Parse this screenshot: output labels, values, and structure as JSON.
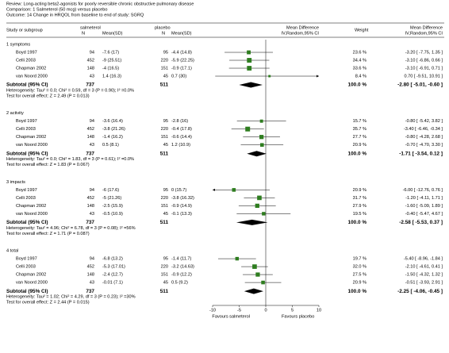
{
  "chart_data": {
    "type": "forest",
    "header": [
      "Review:  Long-acting beta2-agonists for poorly reversible chronic obstructive pulmonary disease",
      "Comparison:  1 Salmeterol (50 mcg) versus placebo",
      "Outcome:  14 Change in HRQOL from baseline to end of study: SGRQ"
    ],
    "columns": {
      "study": "Study or subgroup",
      "group1": "salmeterol",
      "n1": "N",
      "mean1": "Mean(SD)",
      "group2": "placebo",
      "n2": "N",
      "mean2": "Mean(SD)",
      "md": "Mean Difference",
      "md_method": "IV,Random,95% CI",
      "weight": "Weight",
      "md2": "Mean Difference",
      "md_method2": "IV,Random,95% CI"
    },
    "xlim": [
      -10,
      10
    ],
    "xticks": [
      -10,
      -5,
      0,
      5,
      10
    ],
    "favours": [
      "Favours salmeterol",
      "Favours placebo"
    ],
    "color": "#2e7d1f",
    "groups": [
      {
        "title": "1 symptoms",
        "studies": [
          {
            "name": "Boyd 1997",
            "n1": 94,
            "m1": "-7.6 (17)",
            "n2": 95,
            "m2": "-4.4 (14.8)",
            "weight": 23.6,
            "weight_label": "23.6 %",
            "md": -3.2,
            "lo": -7.75,
            "hi": 1.35,
            "md_label": "-3.20 [ -7.75, 1.35 ]"
          },
          {
            "name": "Celli 2003",
            "n1": 452,
            "m1": "-9 (25.51)",
            "n2": 220,
            "m2": "-5.9 (22.25)",
            "weight": 34.4,
            "weight_label": "34.4 %",
            "md": -3.1,
            "lo": -6.86,
            "hi": 0.66,
            "md_label": "-3.10 [ -6.86, 0.66 ]"
          },
          {
            "name": "Chapman 2002",
            "n1": 148,
            "m1": "-4 (16.5)",
            "n2": 151,
            "m2": "-0.9 (17.1)",
            "weight": 33.6,
            "weight_label": "33.6 %",
            "md": -3.1,
            "lo": -6.91,
            "hi": 0.71,
            "md_label": "-3.10 [ -6.91, 0.71 ]"
          },
          {
            "name": "van Noord 2000",
            "n1": 43,
            "m1": "1.4 (16.3)",
            "n2": 45,
            "m2": "0.7 (30)",
            "weight": 8.4,
            "weight_label": "8.4 %",
            "md": 0.7,
            "lo": -9.51,
            "hi": 10.91,
            "md_label": "0.70 [ -9.51, 10.91 ]"
          }
        ],
        "subtotal": {
          "label": "Subtotal (95% CI)",
          "n1": 737,
          "n2": 511,
          "weight": 100.0,
          "weight_label": "100.0 %",
          "md": -2.8,
          "lo": -5.01,
          "hi": -0.6,
          "md_label": "-2.80 [ -5.01, -0.60 ]"
        },
        "heterogeneity": "Heterogeneity: Tau² = 0.0; Chi² = 0.59, df = 3 (P = 0.90); I² =0.0%",
        "test": "Test for overall effect: Z = 2.49 (P = 0.013)"
      },
      {
        "title": "2 activity",
        "studies": [
          {
            "name": "Boyd 1997",
            "n1": 94,
            "m1": "-3.6 (16.4)",
            "n2": 95,
            "m2": "-2.8 (16)",
            "weight": 15.7,
            "weight_label": "15.7 %",
            "md": -0.8,
            "lo": -5.42,
            "hi": 3.82,
            "md_label": "-0.80 [ -5.42, 3.82 ]"
          },
          {
            "name": "Celli 2003",
            "n1": 452,
            "m1": "-3.8 (21.26)",
            "n2": 220,
            "m2": "-0.4 (17.8)",
            "weight": 35.7,
            "weight_label": "35.7 %",
            "md": -3.4,
            "lo": -6.46,
            "hi": -0.34,
            "md_label": "-3.40 [ -6.46, -0.34 ]"
          },
          {
            "name": "Chapman 2002",
            "n1": 148,
            "m1": "-1.4 (16.2)",
            "n2": 151,
            "m2": "-0.6 (14.4)",
            "weight": 27.7,
            "weight_label": "27.7 %",
            "md": -0.8,
            "lo": -4.28,
            "hi": 2.68,
            "md_label": "-0.80 [ -4.28, 2.68 ]"
          },
          {
            "name": "van Noord 2000",
            "n1": 43,
            "m1": "0.5 (8.1)",
            "n2": 45,
            "m2": "1.2 (10.9)",
            "weight": 20.9,
            "weight_label": "20.9 %",
            "md": -0.7,
            "lo": -4.7,
            "hi": 3.3,
            "md_label": "-0.70 [ -4.70, 3.30 ]"
          }
        ],
        "subtotal": {
          "label": "Subtotal (95% CI)",
          "n1": 737,
          "n2": 511,
          "weight": 100.0,
          "weight_label": "100.0 %",
          "md": -1.71,
          "lo": -3.54,
          "hi": 0.12,
          "md_label": "-1.71 [ -3.54, 0.12 ]"
        },
        "heterogeneity": "Heterogeneity: Tau² = 0.0; Chi² = 1.83, df = 3 (P = 0.61); I² =0.0%",
        "test": "Test for overall effect: Z = 1.83 (P = 0.067)"
      },
      {
        "title": "3 impacts",
        "studies": [
          {
            "name": "Boyd 1997",
            "n1": 94,
            "m1": "-6 (17.6)",
            "n2": 95,
            "m2": "0 (15.7)",
            "weight": 20.9,
            "weight_label": "20.9 %",
            "md": -6.0,
            "lo": -12.76,
            "hi": 0.76,
            "md_label": "-6.00 [ -12.76, 0.76 ]"
          },
          {
            "name": "Celli 2003",
            "n1": 452,
            "m1": "-5 (21.26)",
            "n2": 220,
            "m2": "-3.8 (16.32)",
            "weight": 31.7,
            "weight_label": "31.7 %",
            "md": -1.2,
            "lo": -4.11,
            "hi": 1.71,
            "md_label": "-1.20 [ -4.11, 1.71 ]"
          },
          {
            "name": "Chapman 2002",
            "n1": 148,
            "m1": "-2.5 (15.9)",
            "n2": 151,
            "m2": "-0.9 (14.9)",
            "weight": 27.9,
            "weight_label": "27.9 %",
            "md": -1.6,
            "lo": -5.09,
            "hi": 1.89,
            "md_label": "-1.60 [ -5.09, 1.89 ]"
          },
          {
            "name": "van Noord 2000",
            "n1": 43,
            "m1": "-0.5 (10.9)",
            "n2": 45,
            "m2": "-0.1 (13.3)",
            "weight": 19.5,
            "weight_label": "19.5 %",
            "md": -0.4,
            "lo": -5.47,
            "hi": 4.67,
            "md_label": "-0.40 [ -5.47, 4.67 ]"
          }
        ],
        "subtotal": {
          "label": "Subtotal (95% CI)",
          "n1": 737,
          "n2": 511,
          "weight": 100.0,
          "weight_label": "100.0 %",
          "md": -2.58,
          "lo": -5.53,
          "hi": 0.37,
          "md_label": "-2.58 [ -5.53, 0.37 ]"
        },
        "heterogeneity": "Heterogeneity: Tau² = 4.96; Chi² = 6.78, df = 3 (P = 0.08); I² =56%",
        "test": "Test for overall effect: Z = 1.71 (P = 0.087)"
      },
      {
        "title": "4 total",
        "studies": [
          {
            "name": "Boyd 1997",
            "n1": 94,
            "m1": "-6.8 (13.2)",
            "n2": 95,
            "m2": "-1.4 (11.7)",
            "weight": 19.7,
            "weight_label": "19.7 %",
            "md": -5.4,
            "lo": -8.96,
            "hi": -1.84,
            "md_label": "-5.40 [ -8.96, -1.84 ]"
          },
          {
            "name": "Celli 2003",
            "n1": 452,
            "m1": "-5.3 (17.01)",
            "n2": 220,
            "m2": "-3.2 (14.63)",
            "weight": 32.0,
            "weight_label": "32.0 %",
            "md": -2.1,
            "lo": -4.61,
            "hi": 0.41,
            "md_label": "-2.10 [ -4.61, 0.41 ]"
          },
          {
            "name": "Chapman 2002",
            "n1": 148,
            "m1": "-2.4 (12.7)",
            "n2": 151,
            "m2": "-0.9 (12.2)",
            "weight": 27.5,
            "weight_label": "27.5 %",
            "md": -1.5,
            "lo": -4.32,
            "hi": 1.32,
            "md_label": "-1.50 [ -4.32, 1.32 ]"
          },
          {
            "name": "van Noord 2000",
            "n1": 43,
            "m1": "-0.01 (7.1)",
            "n2": 45,
            "m2": "0.5 (9.2)",
            "weight": 20.9,
            "weight_label": "20.9 %",
            "md": -0.51,
            "lo": -3.93,
            "hi": 2.91,
            "md_label": "-0.51 [ -3.93, 2.91 ]"
          }
        ],
        "subtotal": {
          "label": "Subtotal (95% CI)",
          "n1": 737,
          "n2": 511,
          "weight": 100.0,
          "weight_label": "100.0 %",
          "md": -2.25,
          "lo": -4.06,
          "hi": -0.45,
          "md_label": "-2.25 [ -4.06, -0.45 ]"
        },
        "heterogeneity": "Heterogeneity: Tau² = 1.02; Chi² = 4.29, df = 3 (P = 0.23); I² =30%",
        "test": "Test for overall effect: Z = 2.44 (P = 0.015)"
      }
    ]
  }
}
